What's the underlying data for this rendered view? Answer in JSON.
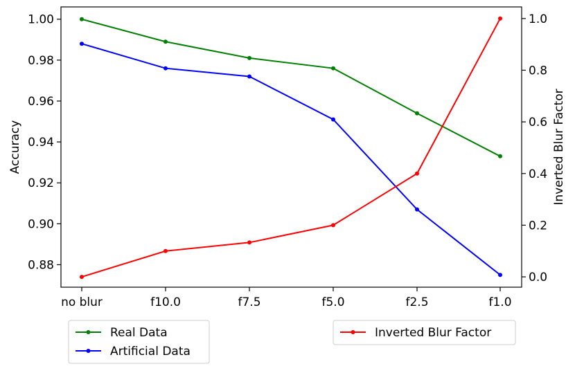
{
  "chart_data": {
    "type": "line",
    "title": "",
    "categories": [
      "no blur",
      "f10.0",
      "f7.5",
      "f5.0",
      "f2.5",
      "f1.0"
    ],
    "xlabel": "",
    "y_left": {
      "label": "Accuracy",
      "ylim": [
        0.869,
        1.006
      ],
      "ticks": [
        0.88,
        0.9,
        0.92,
        0.94,
        0.96,
        0.98,
        1.0
      ],
      "tick_labels": [
        "0.88",
        "0.90",
        "0.92",
        "0.94",
        "0.96",
        "0.98",
        "1.00"
      ]
    },
    "y_right": {
      "label": "Inverted Blur Factor",
      "ylim": [
        -0.04,
        1.045
      ],
      "ticks": [
        0.0,
        0.2,
        0.4,
        0.6,
        0.8,
        1.0
      ],
      "tick_labels": [
        "0.0",
        "0.2",
        "0.4",
        "0.6",
        "0.8",
        "1.0"
      ]
    },
    "series": [
      {
        "name": "Real Data",
        "axis": "left",
        "color": "#008000",
        "values": [
          1.0,
          0.989,
          0.981,
          0.976,
          0.954,
          0.933
        ]
      },
      {
        "name": "Artificial Data",
        "axis": "left",
        "color": "#0000ff",
        "values": [
          0.988,
          0.976,
          0.972,
          0.951,
          0.907,
          0.875
        ]
      },
      {
        "name": "Inverted Blur Factor",
        "axis": "right",
        "color": "#ff0000",
        "values": [
          0.0,
          0.1,
          0.133,
          0.2,
          0.4,
          1.0
        ]
      }
    ],
    "grid": false,
    "legends": [
      {
        "placement": "below-left",
        "entries": [
          "Real Data",
          "Artificial Data"
        ]
      },
      {
        "placement": "below-right",
        "entries": [
          "Inverted Blur Factor"
        ]
      }
    ]
  }
}
